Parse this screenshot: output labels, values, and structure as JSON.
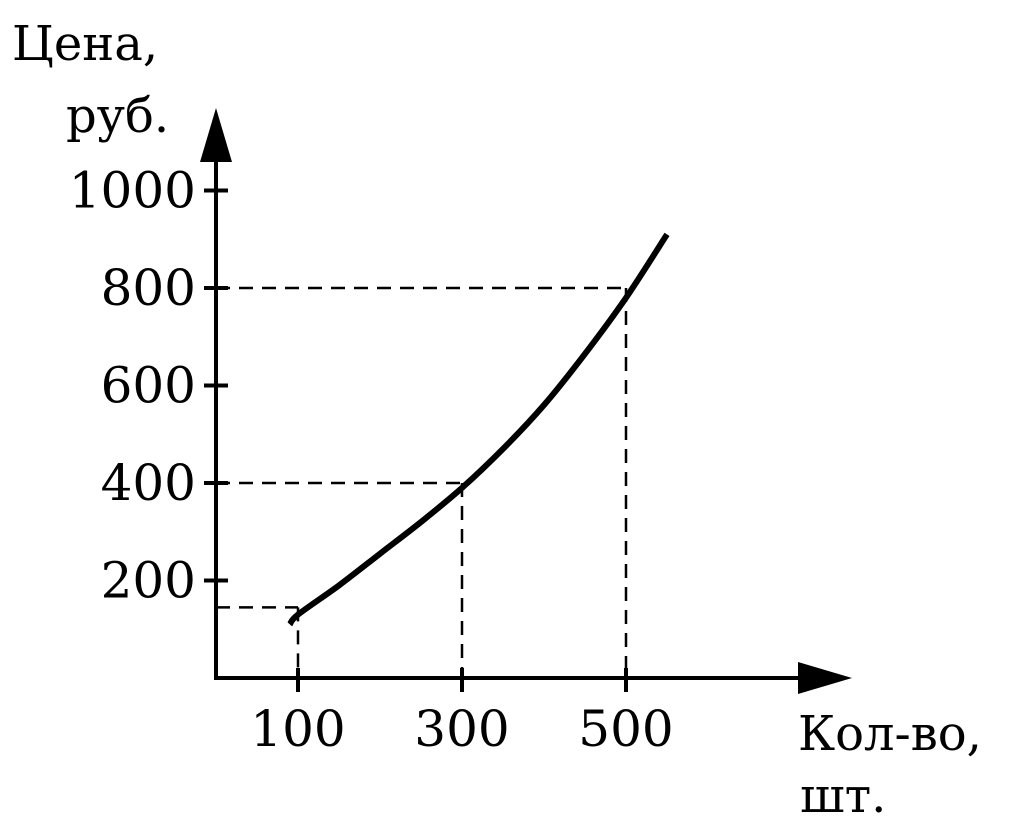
{
  "chart_data": {
    "type": "line",
    "ylabel_lines": [
      "Цена,",
      "руб."
    ],
    "xlabel_lines": [
      "Кол-во,",
      "шт."
    ],
    "x_ticks": [
      {
        "value": 100,
        "label": "100"
      },
      {
        "value": 300,
        "label": "300"
      },
      {
        "value": 500,
        "label": "500"
      }
    ],
    "y_ticks": [
      {
        "value": 200,
        "label": "200"
      },
      {
        "value": 400,
        "label": "400"
      },
      {
        "value": 600,
        "label": "600"
      },
      {
        "value": 800,
        "label": "800"
      },
      {
        "value": 1000,
        "label": "1000"
      }
    ],
    "xlim": [
      0,
      580
    ],
    "ylim": [
      0,
      1000
    ],
    "series": [
      {
        "x": [
          90,
          100,
          150,
          200,
          250,
          300,
          350,
          400,
          450,
          500,
          550
        ],
        "y": [
          110,
          130,
          190,
          255,
          320,
          390,
          470,
          560,
          665,
          780,
          910
        ]
      }
    ],
    "guide_points": [
      {
        "x": 100,
        "y": 145
      },
      {
        "x": 300,
        "y": 400
      },
      {
        "x": 500,
        "y": 800
      }
    ],
    "grid": false,
    "legend": "none"
  }
}
